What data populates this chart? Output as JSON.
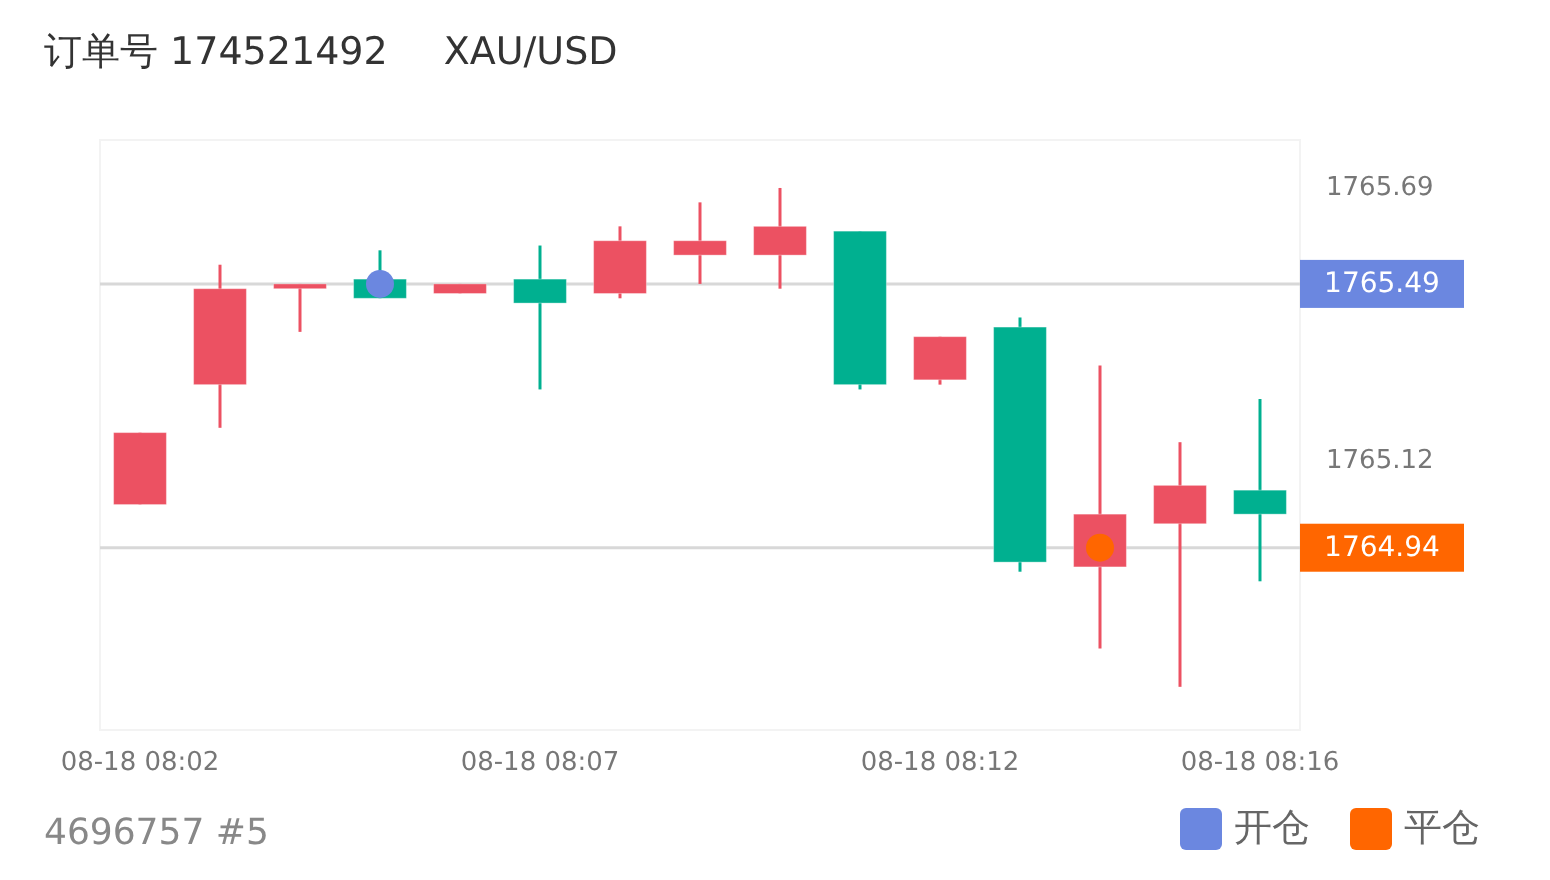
{
  "chart_data": {
    "type": "candlestick",
    "title": "订单号 174521492",
    "subtitle": "XAU/USD",
    "categories": [
      "08-18 08:02",
      null,
      null,
      null,
      null,
      "08-18 08:07",
      null,
      null,
      null,
      null,
      "08-18 08:12",
      null,
      null,
      null,
      "08-18 08:16"
    ],
    "ohlc": [
      [
        1765.03,
        1765.18,
        1765.03,
        1765.18
      ],
      [
        1765.28,
        1765.53,
        1765.19,
        1765.48
      ],
      [
        1765.48,
        1765.49,
        1765.39,
        1765.49
      ],
      [
        1765.5,
        1765.56,
        1765.46,
        1765.46
      ],
      [
        1765.47,
        1765.49,
        1765.47,
        1765.49
      ],
      [
        1765.5,
        1765.57,
        1765.27,
        1765.45
      ],
      [
        1765.47,
        1765.61,
        1765.46,
        1765.58
      ],
      [
        1765.55,
        1765.66,
        1765.49,
        1765.58
      ],
      [
        1765.55,
        1765.69,
        1765.48,
        1765.61
      ],
      [
        1765.6,
        1765.6,
        1765.27,
        1765.28
      ],
      [
        1765.29,
        1765.38,
        1765.28,
        1765.38
      ],
      [
        1765.4,
        1765.42,
        1764.89,
        1764.91
      ],
      [
        1764.9,
        1765.32,
        1764.73,
        1765.01
      ],
      [
        1764.99,
        1765.16,
        1764.65,
        1765.07
      ],
      [
        1765.06,
        1765.25,
        1764.87,
        1765.01
      ]
    ],
    "colors": [
      "#ec5162",
      "#ec5162",
      "#ec5162",
      "#00b090",
      "#ec5162",
      "#00b090",
      "#ec5162",
      "#ec5162",
      "#ec5162",
      "#00b090",
      "#ec5162",
      "#00b090",
      "#ec5162",
      "#ec5162",
      "#00b090"
    ],
    "series": [
      {
        "name": "开仓",
        "type": "scatter",
        "color": "#6b87e0",
        "values": [
          null,
          null,
          null,
          1765.49,
          null,
          null,
          null,
          null,
          null,
          null,
          null,
          null,
          null,
          null,
          null
        ]
      },
      {
        "name": "平仓",
        "type": "scatter",
        "color": "#ff6600",
        "values": [
          null,
          null,
          null,
          null,
          null,
          null,
          null,
          null,
          null,
          null,
          null,
          null,
          1764.94,
          null,
          null
        ]
      }
    ],
    "ylim": [
      1764.56,
      1765.79
    ],
    "yticks": [
      1765.69,
      1765.12
    ],
    "ref_lines": [
      {
        "axis": "y",
        "value": 1765.49,
        "label": "1765.49",
        "color": "#d8d8d8"
      },
      {
        "axis": "y",
        "value": 1764.94,
        "label": "1764.94",
        "color": "#d8d8d8"
      }
    ],
    "annotations": [
      "4696757 #5"
    ],
    "legend": "bottom right",
    "marker": "circle",
    "grid": false
  }
}
